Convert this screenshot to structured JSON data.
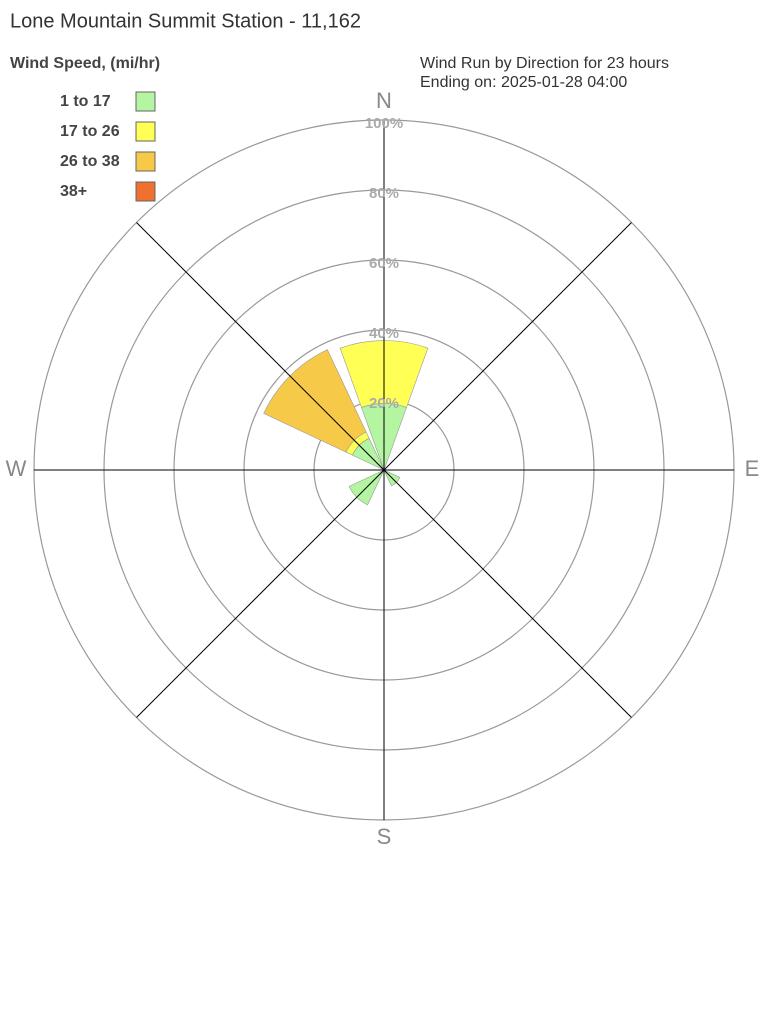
{
  "chart_data": {
    "type": "windrose",
    "title": "Lone Mountain Summit Station - 11,162",
    "legend_title": "Wind Speed, (mi/hr)",
    "subtitle": [
      "Wind Run by Direction for 23 hours",
      "Ending on: 2025-01-28 04:00"
    ],
    "categories": [
      "N",
      null,
      "E",
      null,
      "S",
      null,
      "W",
      null
    ],
    "series": [
      {
        "name": "1 to 17",
        "color": "#b3f5a0",
        "values": [
          19,
          0,
          0,
          5,
          0,
          11,
          0,
          10
        ]
      },
      {
        "name": "17 to 26",
        "color": "#ffff55",
        "values": [
          18,
          0,
          0,
          0,
          0,
          0,
          0,
          2
        ]
      },
      {
        "name": "26 to 38",
        "color": "#f7c948",
        "values": [
          0,
          0,
          0,
          0,
          0,
          0,
          0,
          26
        ]
      },
      {
        "name": "38+",
        "color": "#f07030",
        "values": [
          0,
          0,
          0,
          0,
          0,
          0,
          0,
          0
        ]
      }
    ],
    "rlim": [
      0,
      100
    ],
    "rticks": [
      {
        "value": 20,
        "label": "20%"
      },
      {
        "value": 40,
        "label": "40%"
      },
      {
        "value": 60,
        "label": "60%"
      },
      {
        "value": 80,
        "label": "80%"
      },
      {
        "value": 100,
        "label": "100%"
      }
    ],
    "grid": true
  }
}
